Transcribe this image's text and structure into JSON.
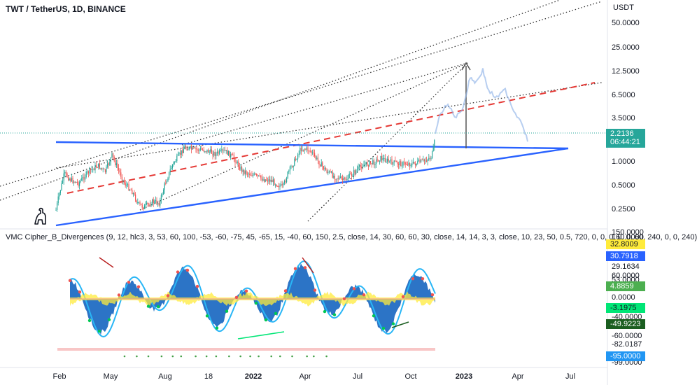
{
  "chart_title": "TWT / TetherUS, 1D, BINANCE",
  "indicator_title": "VMC Cipher_B_Divergences (9, 12, hlc3, 3, 53, 60, 100, -53, -60, -75, 45, -65, 15, -40, 60, 150, 2.5, close, 14, 30, 60, 60, 30, close, 14, 14, 3, 3, close, 10, 23, 50, 0.5, 720, 0, 0, 0, 0, 0, 60, 240, 0, 0, 240)",
  "currency": "USDT",
  "price_axis": [
    "50.0000",
    "25.0000",
    "12.5000",
    "6.5000",
    "3.5000",
    "1.0000",
    "0.5000",
    "0.2500"
  ],
  "last_price": {
    "value": "2.2136",
    "countdown": "06:44:21",
    "color": "#26a69a"
  },
  "indicator_axis": [
    "29.1634",
    "0.0000",
    "-40.0000",
    "-60.0000",
    "-82.0187"
  ],
  "indicator_top_labels": [
    "150.0000",
    "160.0000"
  ],
  "indicator_mid_labels": [
    "60.0000",
    "53.0000"
  ],
  "indicator_badges": [
    {
      "text": "32.8009",
      "bg": "#ffeb3b",
      "fg": "#131722"
    },
    {
      "text": "30.7918",
      "bg": "#2962ff",
      "fg": "#ffffff"
    },
    {
      "text": "4.8859",
      "bg": "#4caf50",
      "fg": "#ffffff"
    },
    {
      "text": "-3.1975",
      "bg": "#00e676",
      "fg": "#131722"
    },
    {
      "text": "-49.9223",
      "bg": "#1b5e20",
      "fg": "#ffffff"
    },
    {
      "text": "-95.0000",
      "bg": "#2196f3",
      "fg": "#ffffff"
    }
  ],
  "indicator_bottom_label": "-99.0000",
  "x_axis": [
    {
      "label": "Feb",
      "bold": false
    },
    {
      "label": "May",
      "bold": false
    },
    {
      "label": "Aug",
      "bold": false
    },
    {
      "label": "18",
      "bold": false
    },
    {
      "label": "2022",
      "bold": true
    },
    {
      "label": "Apr",
      "bold": false
    },
    {
      "label": "Jul",
      "bold": false
    },
    {
      "label": "Oct",
      "bold": false
    },
    {
      "label": "2023",
      "bold": true
    },
    {
      "label": "Apr",
      "bold": false
    },
    {
      "label": "Jul",
      "bold": false
    }
  ],
  "colors": {
    "up": "#26a69a",
    "down": "#ef5350",
    "trendline": "#2962ff",
    "dashed": "#e53935",
    "wave_fill": "#1565c0",
    "wave_line": "#29b6f6",
    "money_flow": "#ffeb3b"
  }
}
